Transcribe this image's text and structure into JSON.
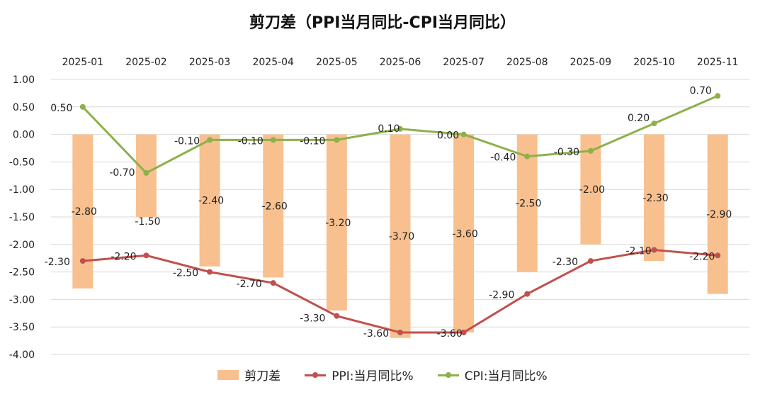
{
  "chart_data": {
    "type": "bar+line",
    "title": "剪刀差（PPI当月同比-CPI当月同比）",
    "categories": [
      "2025-01",
      "2025-02",
      "2025-03",
      "2025-04",
      "2025-05",
      "2025-06",
      "2025-07",
      "2025-08",
      "2025-09",
      "2025-10",
      "2025-11"
    ],
    "ylim": [
      -4.0,
      1.0
    ],
    "yticks": [
      1.0,
      0.5,
      0.0,
      -0.5,
      -1.0,
      -1.5,
      -2.0,
      -2.5,
      -3.0,
      -3.5,
      -4.0
    ],
    "ytick_labels": [
      "1.00",
      "0.50",
      "0.00",
      "-0.50",
      "-1.00",
      "-1.50",
      "-2.00",
      "-2.50",
      "-3.00",
      "-3.50",
      "-4.00"
    ],
    "grid": true,
    "x_axis_position": "top",
    "legend_position": "bottom",
    "series": [
      {
        "name": "剪刀差",
        "type": "bar",
        "color": "#F8C08E",
        "values": [
          -2.8,
          -1.5,
          -2.4,
          -2.6,
          -3.2,
          -3.7,
          -3.6,
          -2.5,
          -2.0,
          -2.3,
          -2.9
        ],
        "labels": [
          "-2.80",
          "-1.50",
          "-2.40",
          "-2.60",
          "-3.20",
          "-3.70",
          "-3.60",
          "-2.50",
          "-2.00",
          "-2.30",
          "-2.90"
        ]
      },
      {
        "name": "PPI:当月同比%",
        "type": "line",
        "color": "#C0504D",
        "values": [
          -2.3,
          -2.2,
          -2.5,
          -2.7,
          -3.3,
          -3.6,
          -3.6,
          -2.9,
          -2.3,
          -2.1,
          -2.2
        ],
        "labels": [
          "-2.30",
          "-2.20",
          "-2.50",
          "-2.70",
          "-3.30",
          "-3.60",
          "-3.60",
          "-2.90",
          "-2.30",
          "-2.10",
          "-2.20"
        ]
      },
      {
        "name": "CPI:当月同比%",
        "type": "line",
        "color": "#8DB04A",
        "values": [
          0.5,
          -0.7,
          -0.1,
          -0.1,
          -0.1,
          0.1,
          0.0,
          -0.4,
          -0.3,
          0.2,
          0.7
        ],
        "labels": [
          "0.50",
          "-0.70",
          "-0.10",
          "-0.10",
          "-0.10",
          "0.10",
          "0.00",
          "-0.40",
          "-0.30",
          "0.20",
          "0.70"
        ]
      }
    ]
  }
}
